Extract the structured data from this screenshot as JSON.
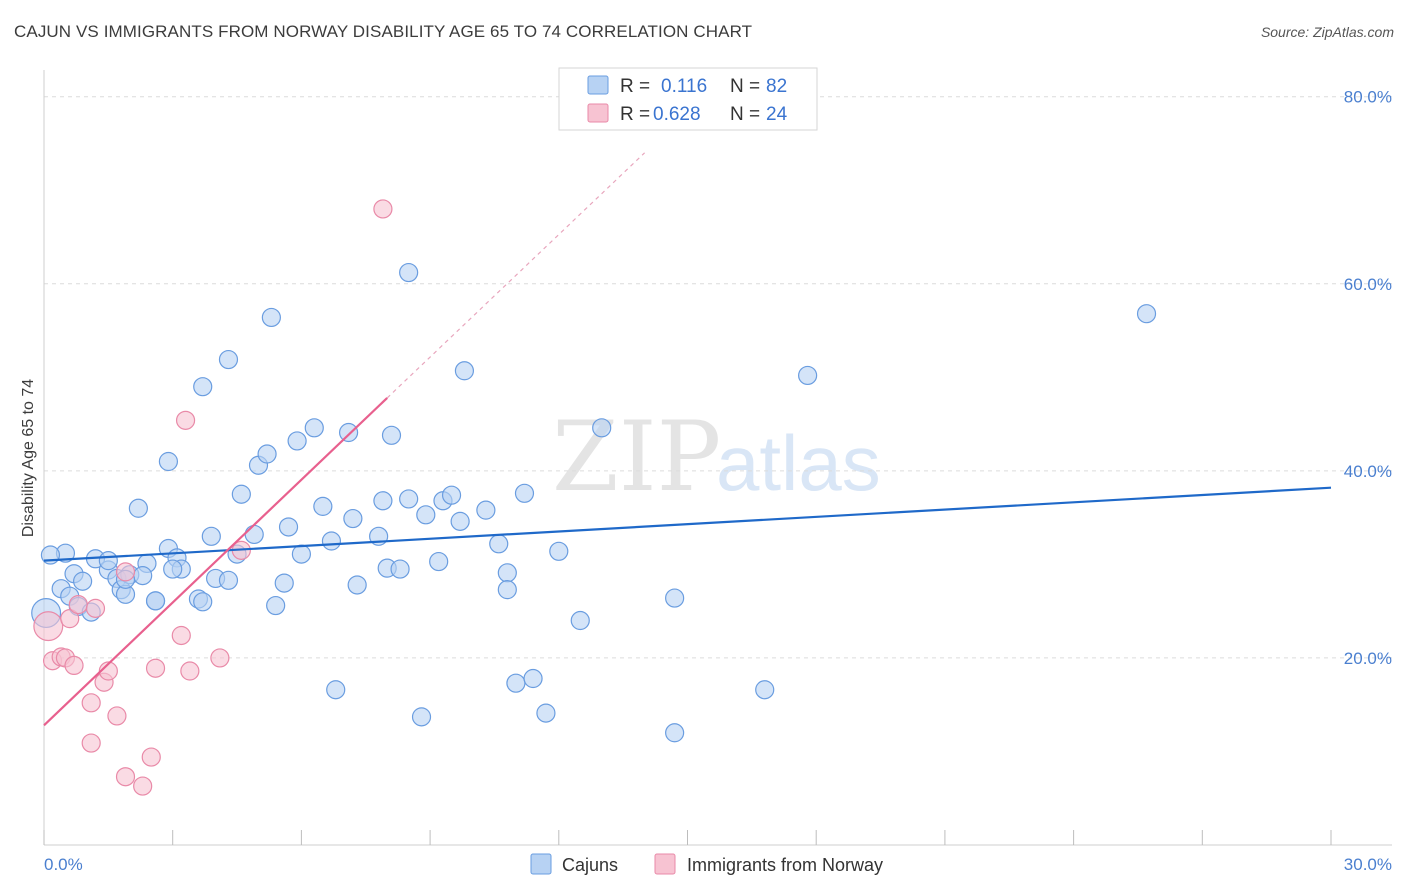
{
  "title": "CAJUN VS IMMIGRANTS FROM NORWAY DISABILITY AGE 65 TO 74 CORRELATION CHART",
  "source": "Source: ZipAtlas.com",
  "watermark": {
    "zip": "ZIP",
    "atlas": "atlas"
  },
  "colors": {
    "cajun_fill": "#b7d2f3",
    "cajun_stroke": "#6a9de0",
    "cajun_line": "#1f69c9",
    "norway_fill": "#f7c3d2",
    "norway_stroke": "#e98aa8",
    "norway_line": "#e8608e",
    "grid": "#dcdcdc",
    "axis_label": "#4a7fcf"
  },
  "legend": {
    "rows": [
      {
        "r_label": "R = ",
        "r_value": "0.116",
        "n_label": "N = ",
        "n_value": "82"
      },
      {
        "r_label": "R = ",
        "r_value": "0.628",
        "n_label": "N = ",
        "n_value": "24"
      }
    ]
  },
  "bottom_legend": [
    "Cajuns",
    "Immigrants from Norway"
  ],
  "chart_data": {
    "type": "scatter",
    "title": "CAJUN VS IMMIGRANTS FROM NORWAY DISABILITY AGE 65 TO 74 CORRELATION CHART",
    "xlabel": "",
    "ylabel": "Disability Age 65 to 74",
    "xlim": [
      0,
      30
    ],
    "ylim": [
      0,
      82
    ],
    "x_tick_labels": [
      "0.0%",
      "30.0%"
    ],
    "y_ticks": [
      20,
      40,
      60,
      80
    ],
    "y_tick_labels": [
      "20.0%",
      "40.0%",
      "60.0%",
      "80.0%"
    ],
    "grid": true,
    "legend_position": "top-center",
    "series": [
      {
        "name": "Cajuns",
        "r": 0.116,
        "n": 82,
        "trend": {
          "x": [
            0,
            30
          ],
          "y": [
            30.4,
            38.2
          ]
        },
        "points": [
          [
            0.05,
            24.8,
            1.6
          ],
          [
            0.4,
            27.4,
            1
          ],
          [
            0.5,
            31.2,
            1
          ],
          [
            0.6,
            26.6,
            1
          ],
          [
            0.7,
            29.0,
            1
          ],
          [
            0.8,
            25.5,
            1
          ],
          [
            0.9,
            28.2,
            1
          ],
          [
            1.1,
            24.9,
            1
          ],
          [
            1.2,
            30.6,
            1
          ],
          [
            1.5,
            29.4,
            1
          ],
          [
            1.7,
            28.5,
            1
          ],
          [
            1.8,
            27.3,
            1
          ],
          [
            1.9,
            26.8,
            1
          ],
          [
            2.0,
            28.9,
            1
          ],
          [
            2.2,
            36.0,
            1
          ],
          [
            2.4,
            30.1,
            1
          ],
          [
            2.6,
            26.1,
            1
          ],
          [
            2.9,
            31.7,
            1
          ],
          [
            3.1,
            30.7,
            1
          ],
          [
            3.2,
            29.5,
            1
          ],
          [
            3.0,
            29.5,
            1
          ],
          [
            2.6,
            26.1,
            1
          ],
          [
            2.3,
            28.8,
            1
          ],
          [
            2.9,
            41.0,
            1
          ],
          [
            3.6,
            26.3,
            1
          ],
          [
            3.7,
            26.0,
            1
          ],
          [
            3.9,
            33.0,
            1
          ],
          [
            4.0,
            28.5,
            1
          ],
          [
            4.3,
            28.3,
            1
          ],
          [
            3.7,
            49.0,
            1
          ],
          [
            4.3,
            51.9,
            1
          ],
          [
            4.6,
            37.5,
            1
          ],
          [
            4.9,
            33.2,
            1
          ],
          [
            4.5,
            31.1,
            1
          ],
          [
            5.0,
            40.6,
            1
          ],
          [
            5.2,
            41.8,
            1
          ],
          [
            5.4,
            25.6,
            1
          ],
          [
            5.6,
            28.0,
            1
          ],
          [
            5.7,
            34.0,
            1
          ],
          [
            5.3,
            56.4,
            1
          ],
          [
            5.9,
            43.2,
            1
          ],
          [
            6.0,
            31.1,
            1
          ],
          [
            6.3,
            44.6,
            1
          ],
          [
            6.5,
            36.2,
            1
          ],
          [
            6.7,
            32.5,
            1
          ],
          [
            6.8,
            16.6,
            1
          ],
          [
            7.1,
            44.1,
            1
          ],
          [
            7.2,
            34.9,
            1
          ],
          [
            7.3,
            27.8,
            1
          ],
          [
            7.8,
            33.0,
            1
          ],
          [
            7.9,
            36.8,
            1
          ],
          [
            8.0,
            29.6,
            1
          ],
          [
            8.1,
            43.8,
            1
          ],
          [
            8.3,
            29.5,
            1
          ],
          [
            8.5,
            37.0,
            1
          ],
          [
            8.9,
            35.3,
            1
          ],
          [
            8.5,
            61.2,
            1
          ],
          [
            8.8,
            13.7,
            1
          ],
          [
            9.2,
            30.3,
            1
          ],
          [
            9.3,
            36.8,
            1
          ],
          [
            9.5,
            37.4,
            1
          ],
          [
            9.7,
            34.6,
            1
          ],
          [
            9.8,
            50.7,
            1
          ],
          [
            10.3,
            35.8,
            1
          ],
          [
            10.6,
            32.2,
            1
          ],
          [
            10.8,
            29.1,
            1
          ],
          [
            10.8,
            27.3,
            1
          ],
          [
            11.2,
            37.6,
            1
          ],
          [
            11.0,
            17.3,
            1
          ],
          [
            11.4,
            17.8,
            1
          ],
          [
            11.7,
            14.1,
            1
          ],
          [
            12.0,
            31.4,
            1
          ],
          [
            12.5,
            24.0,
            1
          ],
          [
            13.0,
            44.6,
            1
          ],
          [
            14.7,
            26.4,
            1
          ],
          [
            14.7,
            12.0,
            1
          ],
          [
            16.8,
            16.6,
            1
          ],
          [
            17.8,
            50.2,
            1
          ],
          [
            25.7,
            56.8,
            1
          ],
          [
            0.15,
            31.0,
            1
          ],
          [
            1.5,
            30.4,
            1
          ],
          [
            1.9,
            28.4,
            1
          ]
        ]
      },
      {
        "name": "Immigrants from Norway",
        "r": 0.628,
        "n": 24,
        "trend": {
          "x": [
            0,
            8.0
          ],
          "y": [
            12.8,
            47.8
          ]
        },
        "trend_dashed": {
          "x": [
            8.0,
            14.0
          ],
          "y": [
            47.8,
            74.0
          ]
        },
        "points": [
          [
            0.1,
            23.4,
            1.6
          ],
          [
            0.2,
            19.7,
            1
          ],
          [
            0.4,
            20.1,
            1
          ],
          [
            0.5,
            20.0,
            1
          ],
          [
            0.6,
            24.2,
            1
          ],
          [
            0.7,
            19.2,
            1
          ],
          [
            0.8,
            25.7,
            1
          ],
          [
            1.1,
            15.2,
            1
          ],
          [
            1.2,
            25.3,
            1
          ],
          [
            1.4,
            17.4,
            1
          ],
          [
            1.5,
            18.6,
            1
          ],
          [
            1.1,
            10.9,
            1
          ],
          [
            1.7,
            13.8,
            1
          ],
          [
            1.9,
            7.3,
            1
          ],
          [
            2.3,
            6.3,
            1
          ],
          [
            2.5,
            9.4,
            1
          ],
          [
            2.6,
            18.9,
            1
          ],
          [
            3.2,
            22.4,
            1
          ],
          [
            3.3,
            45.4,
            1
          ],
          [
            3.4,
            18.6,
            1
          ],
          [
            4.1,
            20.0,
            1
          ],
          [
            4.6,
            31.5,
            1
          ],
          [
            7.9,
            68.0,
            1
          ],
          [
            1.9,
            29.2,
            1
          ]
        ]
      }
    ]
  }
}
